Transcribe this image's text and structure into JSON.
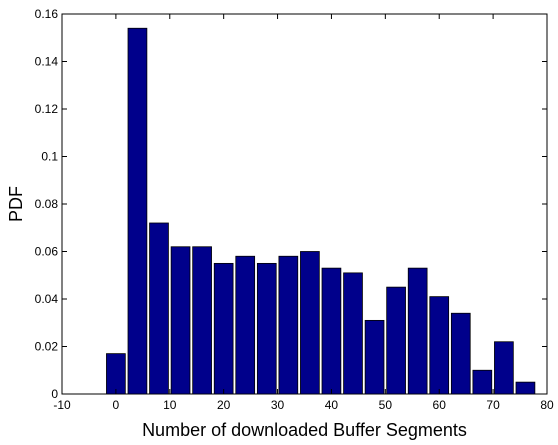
{
  "chart_data": {
    "type": "bar",
    "xlabel": "Number of downloaded Buffer Segments",
    "ylabel": "PDF",
    "xlim": [
      -10,
      80
    ],
    "ylim": [
      0,
      0.16
    ],
    "xticks": [
      "-10",
      "0",
      "10",
      "20",
      "30",
      "40",
      "50",
      "60",
      "70",
      "80"
    ],
    "yticks": [
      "0",
      "0.02",
      "0.04",
      "0.06",
      "0.08",
      "0.1",
      "0.12",
      "0.14",
      "0.16"
    ],
    "bar_width": 3.5,
    "bar_color": "#00008B",
    "grid": false,
    "x": [
      0,
      4,
      8,
      12,
      16,
      20,
      24,
      28,
      32,
      36,
      40,
      44,
      48,
      52,
      56,
      60,
      64,
      68,
      72,
      76
    ],
    "values": [
      0.017,
      0.154,
      0.072,
      0.062,
      0.062,
      0.055,
      0.058,
      0.055,
      0.058,
      0.06,
      0.053,
      0.051,
      0.031,
      0.045,
      0.053,
      0.041,
      0.034,
      0.01,
      0.022,
      0.005
    ]
  }
}
